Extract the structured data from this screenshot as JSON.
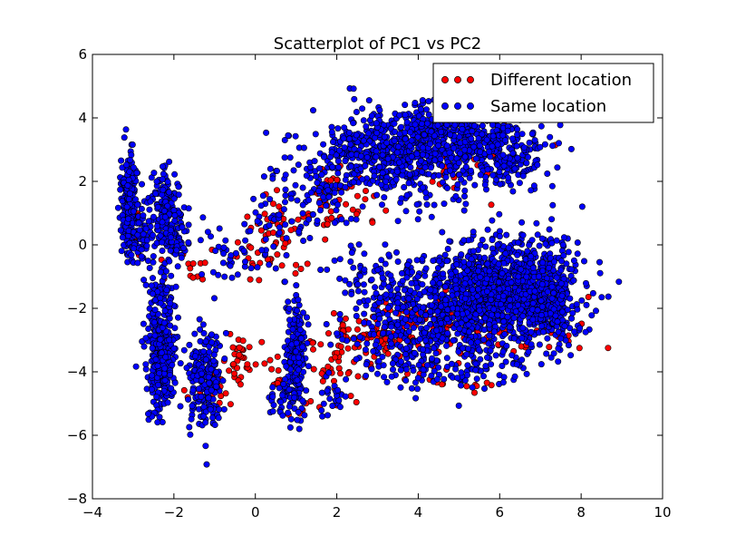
{
  "chart_data": {
    "type": "scatter",
    "title": "Scatterplot of PC1 vs PC2",
    "xlabel": "",
    "ylabel": "",
    "xlim": [
      -4,
      10
    ],
    "ylim": [
      -8,
      6
    ],
    "xticks": [
      -4,
      -2,
      0,
      2,
      4,
      6,
      8,
      10
    ],
    "yticks": [
      -8,
      -6,
      -4,
      -2,
      0,
      2,
      4,
      6
    ],
    "xtick_labels": [
      "−4",
      "−2",
      "0",
      "2",
      "4",
      "6",
      "8",
      "10"
    ],
    "ytick_labels": [
      "−8",
      "−6",
      "−4",
      "−2",
      "0",
      "2",
      "4",
      "6"
    ],
    "grid": false,
    "legend_position": "top-right",
    "series": [
      {
        "name": "Different location",
        "color": "#ff0000",
        "clusters": [
          {
            "center": [
              -3.0,
              0.6
            ],
            "spread": [
              0.15,
              0.5
            ],
            "count": 10
          },
          {
            "center": [
              -2.2,
              -0.5
            ],
            "spread": [
              0.2,
              0.3
            ],
            "count": 6
          },
          {
            "center": [
              -1.5,
              -0.6
            ],
            "spread": [
              0.3,
              0.4
            ],
            "count": 8
          },
          {
            "center": [
              0.6,
              0.6
            ],
            "spread": [
              0.35,
              0.6
            ],
            "count": 40
          },
          {
            "center": [
              -0.4,
              -0.4
            ],
            "spread": [
              0.3,
              0.4
            ],
            "count": 8
          },
          {
            "center": [
              0.3,
              -0.6
            ],
            "spread": [
              0.3,
              0.3
            ],
            "count": 10
          },
          {
            "center": [
              1.9,
              2.0
            ],
            "spread": [
              0.3,
              0.3
            ],
            "count": 25
          },
          {
            "center": [
              1.7,
              1.0
            ],
            "spread": [
              0.25,
              0.4
            ],
            "count": 18
          },
          {
            "center": [
              2.7,
              1.4
            ],
            "spread": [
              0.4,
              0.4
            ],
            "count": 15
          },
          {
            "center": [
              5.0,
              2.6
            ],
            "spread": [
              0.7,
              0.5
            ],
            "count": 40
          },
          {
            "center": [
              2.8,
              -2.8
            ],
            "spread": [
              0.5,
              0.4
            ],
            "count": 55
          },
          {
            "center": [
              4.0,
              -2.6
            ],
            "spread": [
              0.7,
              0.5
            ],
            "count": 50
          },
          {
            "center": [
              4.3,
              -3.8
            ],
            "spread": [
              0.6,
              0.5
            ],
            "count": 25
          },
          {
            "center": [
              6.4,
              -2.6
            ],
            "spread": [
              0.9,
              0.5
            ],
            "count": 70
          },
          {
            "center": [
              -0.4,
              -3.8
            ],
            "spread": [
              0.2,
              0.5
            ],
            "count": 35
          },
          {
            "center": [
              -0.9,
              -4.3
            ],
            "spread": [
              0.15,
              0.4
            ],
            "count": 8
          },
          {
            "center": [
              0.5,
              -4.1
            ],
            "spread": [
              0.25,
              0.4
            ],
            "count": 12
          },
          {
            "center": [
              1.6,
              -3.6
            ],
            "spread": [
              0.3,
              0.5
            ],
            "count": 14
          },
          {
            "center": [
              2.1,
              -4.0
            ],
            "spread": [
              0.3,
              0.4
            ],
            "count": 20
          },
          {
            "center": [
              -2.4,
              -3.0
            ],
            "spread": [
              0.15,
              0.5
            ],
            "count": 8
          },
          {
            "center": [
              -1.6,
              -4.6
            ],
            "spread": [
              0.25,
              0.3
            ],
            "count": 6
          },
          {
            "center": [
              1.3,
              -5.1
            ],
            "spread": [
              0.3,
              0.2
            ],
            "count": 8
          },
          {
            "center": [
              5.4,
              -4.4
            ],
            "spread": [
              0.4,
              0.1
            ],
            "count": 5
          }
        ]
      },
      {
        "name": "Same location",
        "color": "#0000ff",
        "clusters": [
          {
            "center": [
              -3.1,
              1.3
            ],
            "spread": [
              0.1,
              0.8
            ],
            "count": 260
          },
          {
            "center": [
              -2.8,
              0.3
            ],
            "spread": [
              0.15,
              0.5
            ],
            "count": 60
          },
          {
            "center": [
              -2.2,
              1.0
            ],
            "spread": [
              0.18,
              0.7
            ],
            "count": 170
          },
          {
            "center": [
              -1.9,
              0.1
            ],
            "spread": [
              0.15,
              0.4
            ],
            "count": 40
          },
          {
            "center": [
              -2.3,
              -3.5
            ],
            "spread": [
              0.18,
              0.9
            ],
            "count": 300
          },
          {
            "center": [
              -1.25,
              -4.2
            ],
            "spread": [
              0.2,
              0.8
            ],
            "count": 200
          },
          {
            "center": [
              -2.3,
              -1.5
            ],
            "spread": [
              0.15,
              0.4
            ],
            "count": 40
          },
          {
            "center": [
              1.0,
              -3.5
            ],
            "spread": [
              0.12,
              0.9
            ],
            "count": 200
          },
          {
            "center": [
              0.6,
              -4.9
            ],
            "spread": [
              0.15,
              0.35
            ],
            "count": 30
          },
          {
            "center": [
              1.9,
              -4.7
            ],
            "spread": [
              0.2,
              0.3
            ],
            "count": 25
          },
          {
            "center": [
              0.6,
              1.0
            ],
            "spread": [
              0.4,
              0.8
            ],
            "count": 60
          },
          {
            "center": [
              -0.6,
              -0.3
            ],
            "spread": [
              0.6,
              0.6
            ],
            "count": 40
          },
          {
            "center": [
              1.7,
              1.8
            ],
            "spread": [
              0.3,
              0.6
            ],
            "count": 60
          },
          {
            "center": [
              3.5,
              2.6
            ],
            "spread": [
              1.0,
              0.7
            ],
            "count": 400
          },
          {
            "center": [
              4.8,
              3.6
            ],
            "spread": [
              1.0,
              0.5
            ],
            "count": 400
          },
          {
            "center": [
              6.0,
              2.8
            ],
            "spread": [
              0.6,
              0.5
            ],
            "count": 200
          },
          {
            "center": [
              2.6,
              3.1
            ],
            "spread": [
              0.5,
              0.5
            ],
            "count": 90
          },
          {
            "center": [
              6.3,
              -1.4
            ],
            "spread": [
              0.8,
              0.8
            ],
            "count": 900
          },
          {
            "center": [
              5.1,
              -1.8
            ],
            "spread": [
              0.7,
              0.8
            ],
            "count": 350
          },
          {
            "center": [
              7.3,
              -1.8
            ],
            "spread": [
              0.3,
              0.6
            ],
            "count": 150
          },
          {
            "center": [
              3.7,
              -2.5
            ],
            "spread": [
              0.8,
              0.6
            ],
            "count": 180
          },
          {
            "center": [
              4.2,
              -3.8
            ],
            "spread": [
              0.7,
              0.5
            ],
            "count": 90
          },
          {
            "center": [
              3.4,
              -1.2
            ],
            "spread": [
              0.7,
              0.5
            ],
            "count": 80
          },
          {
            "center": [
              2.6,
              -0.6
            ],
            "spread": [
              0.5,
              0.4
            ],
            "count": 30
          },
          {
            "center": [
              5.8,
              -3.7
            ],
            "spread": [
              0.6,
              0.4
            ],
            "count": 60
          }
        ]
      }
    ]
  }
}
